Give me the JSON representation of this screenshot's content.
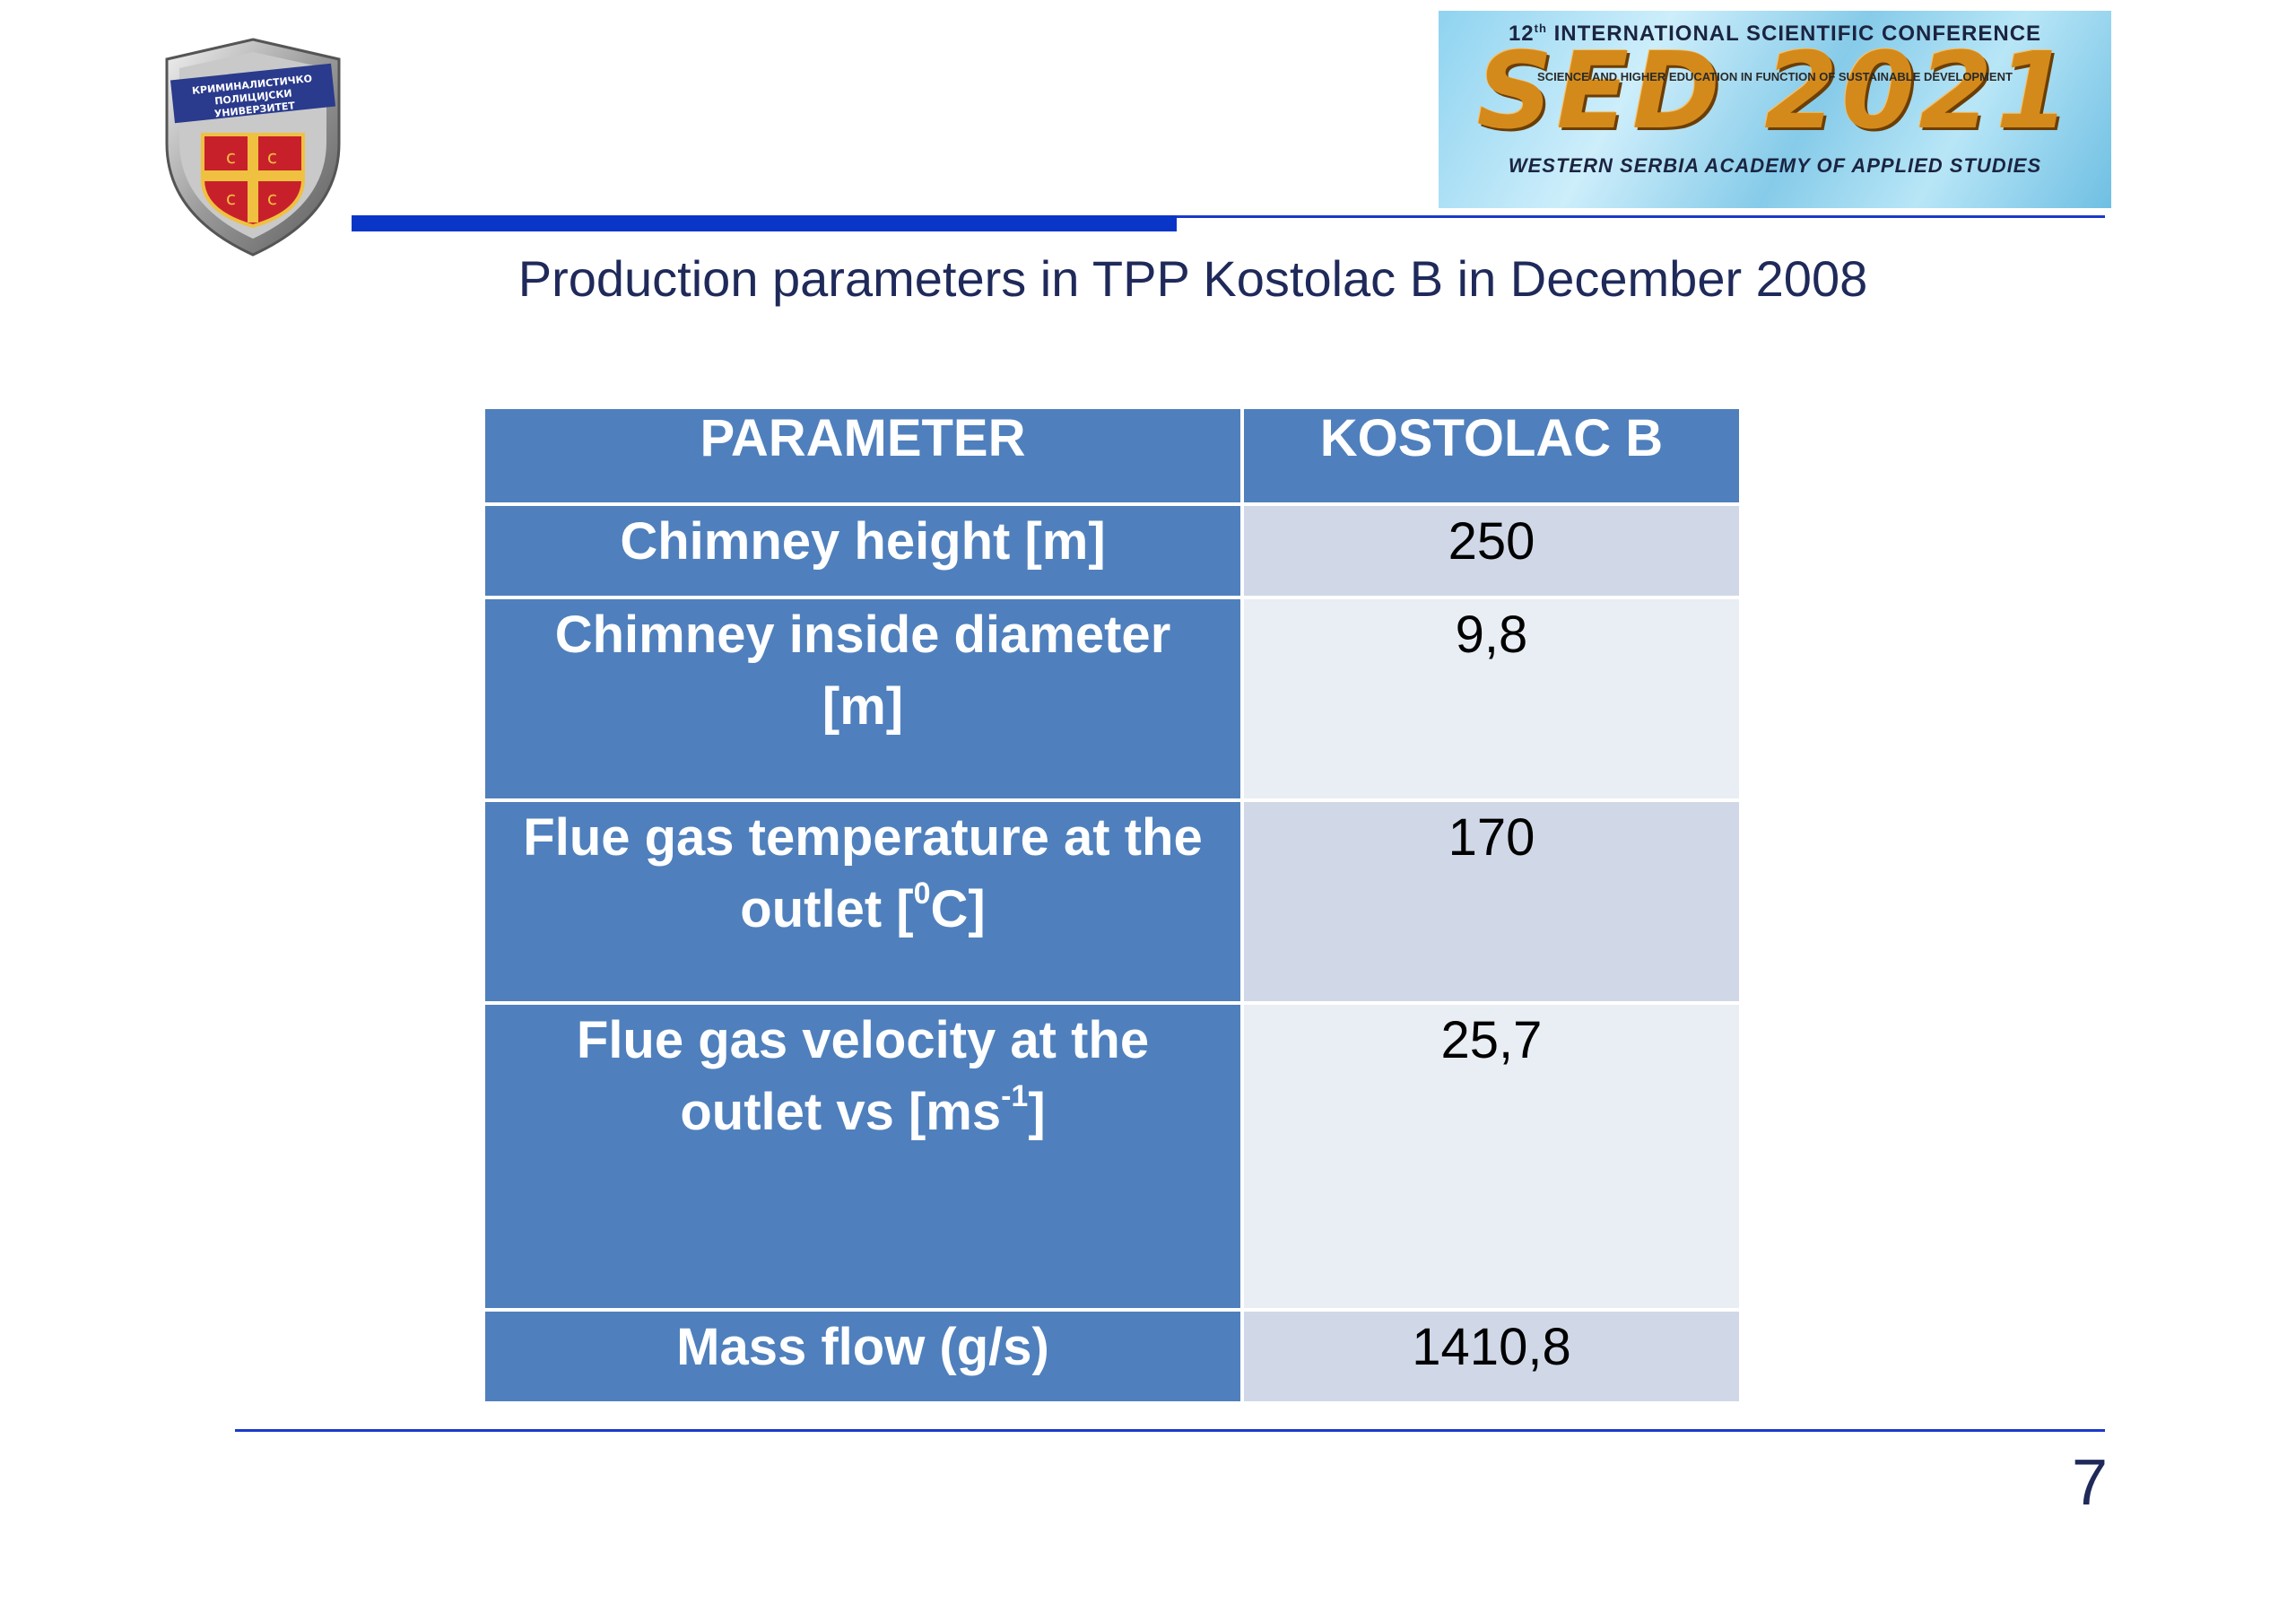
{
  "emblem": {
    "name": "university-emblem",
    "text": "КРИМИНАЛИСТИЧКО ПОЛИЦИЈСКИ УНИВЕРЗИТЕТ"
  },
  "banner": {
    "line1_prefix": "12",
    "line1_sup": "th",
    "line1_rest": " INTERNATIONAL SCIENTIFIC CONFERENCE",
    "line2": "SCIENCE AND HIGHER EDUCATION IN FUNCTION OF SUSTAINABLE DEVELOPMENT",
    "mark": "SED 2021",
    "line3": "WESTERN SERBIA ACADEMY OF APPLIED STUDIES"
  },
  "title": "Production parameters in TPP Kostolac B in December 2008",
  "table": {
    "headers": [
      "PARAMETER",
      "KOSTOLAC B"
    ],
    "rows": [
      {
        "param": "Chimney height  [m]",
        "value": "250"
      },
      {
        "param_line1": "Chimney inside diameter",
        "param_line2": "[m]",
        "value": "9,8"
      },
      {
        "param_line1": "Flue gas temperature at the",
        "param_line2_a": "outlet [",
        "param_line2_sup": "0",
        "param_line2_b": "C]",
        "value": "170"
      },
      {
        "param_line1": "Flue gas velocity at the",
        "param_line2_a": "outlet vs [ms",
        "param_line2_sup": "-1",
        "param_line2_b": "]",
        "value": "25,7"
      },
      {
        "param": "Mass flow (g/s)",
        "value": "1410,8"
      }
    ]
  },
  "page_number": "7",
  "colors": {
    "accent_blue": "#0a36c8",
    "table_header": "#4f80bd",
    "row_alt_dark": "#d0d8e8",
    "row_alt_light": "#e9edf4",
    "title_text": "#1f2a5a"
  }
}
